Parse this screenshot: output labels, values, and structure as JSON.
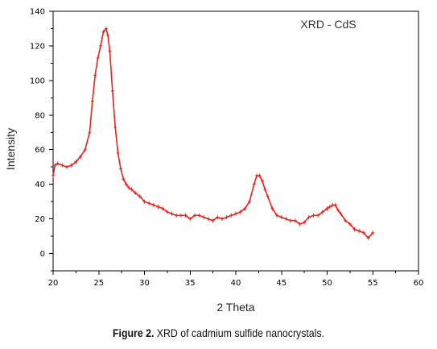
{
  "caption": {
    "label": "Figure 2.",
    "text": "XRD of cadmium sulfide nanocrystals."
  },
  "chart_data": {
    "type": "line",
    "title": "XRD - CdS",
    "xlabel": "2 Theta",
    "ylabel": "Intensity",
    "xlim": [
      20,
      60
    ],
    "ylim": [
      -10,
      140
    ],
    "xticks": [
      20,
      25,
      30,
      35,
      40,
      45,
      50,
      55,
      60
    ],
    "yticks": [
      0,
      20,
      40,
      60,
      80,
      100,
      120,
      140
    ],
    "grid": false,
    "line_color": "#e8231f",
    "series": [
      {
        "name": "",
        "x": [
          20.0,
          20.2,
          20.5,
          21.0,
          21.5,
          22.0,
          22.5,
          23.0,
          23.5,
          24.0,
          24.3,
          24.6,
          24.9,
          25.2,
          25.5,
          25.8,
          26.0,
          26.2,
          26.5,
          26.8,
          27.1,
          27.4,
          27.7,
          28.0,
          28.3,
          28.6,
          29.0,
          29.5,
          30.0,
          30.5,
          31.0,
          31.5,
          32.0,
          32.5,
          33.0,
          33.5,
          34.0,
          34.5,
          35.0,
          35.5,
          36.0,
          36.5,
          37.0,
          37.5,
          38.0,
          38.5,
          39.0,
          39.5,
          40.0,
          40.5,
          41.0,
          41.5,
          42.0,
          42.3,
          42.6,
          42.9,
          43.2,
          43.5,
          44.0,
          44.5,
          45.0,
          45.5,
          46.0,
          46.5,
          47.0,
          47.5,
          48.0,
          48.5,
          49.0,
          49.5,
          50.0,
          50.3,
          50.6,
          50.9,
          51.2,
          51.5,
          52.0,
          52.5,
          53.0,
          53.5,
          54.0,
          54.5,
          55.0
        ],
        "y": [
          45,
          51,
          52,
          51,
          50,
          51,
          53,
          56,
          60,
          70,
          88,
          103,
          113,
          120,
          128,
          130,
          126,
          117,
          94,
          73,
          58,
          49,
          43,
          40,
          38,
          37,
          35,
          33,
          30,
          29,
          28,
          27,
          26,
          24,
          23,
          22,
          22,
          22,
          20,
          22,
          22,
          21,
          20,
          19,
          21,
          20,
          21,
          22,
          23,
          24,
          26,
          30,
          40,
          45,
          45,
          42,
          37,
          33,
          26,
          22,
          21,
          20,
          19,
          19,
          17,
          18,
          21,
          22,
          22,
          24,
          26,
          27,
          28,
          28,
          25,
          23,
          19,
          17,
          14,
          13,
          12,
          9,
          12
        ]
      }
    ]
  }
}
